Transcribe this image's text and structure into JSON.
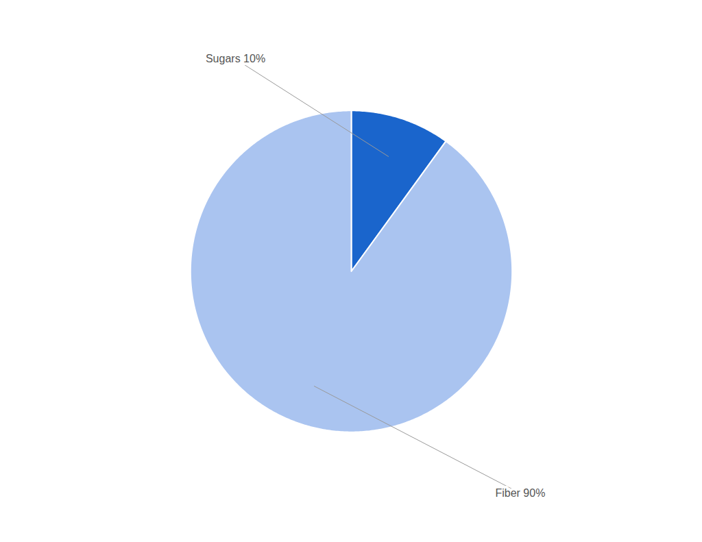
{
  "chart_data": {
    "type": "pie",
    "categories": [
      "Sugars 10%",
      "Fiber 90%"
    ],
    "values": [
      10,
      90
    ],
    "colors": [
      "#1a65cc",
      "#aac4f0"
    ]
  }
}
